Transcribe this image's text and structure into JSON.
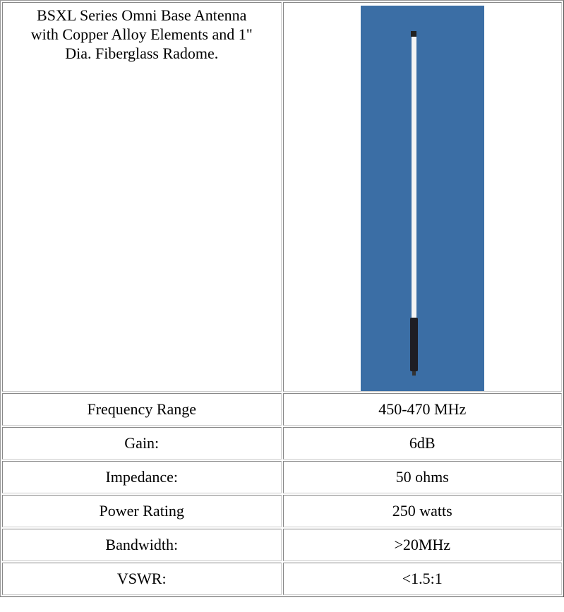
{
  "description": "BSXL Series Omni Base Antenna with Copper Alloy Elements and 1\" Dia. Fiberglass Radome.",
  "specs": [
    [
      "Frequency Range",
      "450-470 MHz"
    ],
    [
      "Gain:",
      "6dB"
    ],
    [
      "Impedance:",
      "50 ohms"
    ],
    [
      "Power Rating",
      "250 watts"
    ],
    [
      "Bandwidth:",
      ">20MHz"
    ],
    [
      "VSWR:",
      "<1.5:1"
    ]
  ]
}
